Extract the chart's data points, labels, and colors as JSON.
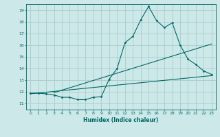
{
  "xlabel": "Humidex (Indice chaleur)",
  "ylabel": "",
  "bg_color": "#cce8e8",
  "grid_color": "#aacccc",
  "line_color": "#006666",
  "xlim": [
    -0.5,
    23.5
  ],
  "ylim": [
    10.5,
    19.5
  ],
  "xticks": [
    0,
    1,
    2,
    3,
    4,
    5,
    6,
    7,
    8,
    9,
    10,
    11,
    12,
    13,
    14,
    15,
    16,
    17,
    18,
    19,
    20,
    21,
    22,
    23
  ],
  "yticks": [
    11,
    12,
    13,
    14,
    15,
    16,
    17,
    18,
    19
  ],
  "series1_x": [
    0,
    1,
    2,
    3,
    4,
    5,
    6,
    7,
    8,
    9,
    10,
    11,
    12,
    13,
    14,
    15,
    16,
    17,
    18,
    19,
    20,
    21,
    22,
    23
  ],
  "series1_y": [
    11.9,
    11.9,
    11.85,
    11.75,
    11.55,
    11.55,
    11.35,
    11.35,
    11.55,
    11.6,
    13.1,
    14.0,
    16.2,
    16.75,
    18.15,
    19.3,
    18.1,
    17.5,
    17.9,
    16.0,
    14.8,
    14.35,
    13.8,
    13.5
  ],
  "series2_x": [
    0,
    23
  ],
  "series2_y": [
    11.85,
    13.4
  ],
  "series3_x": [
    3,
    23
  ],
  "series3_y": [
    11.95,
    16.1
  ]
}
